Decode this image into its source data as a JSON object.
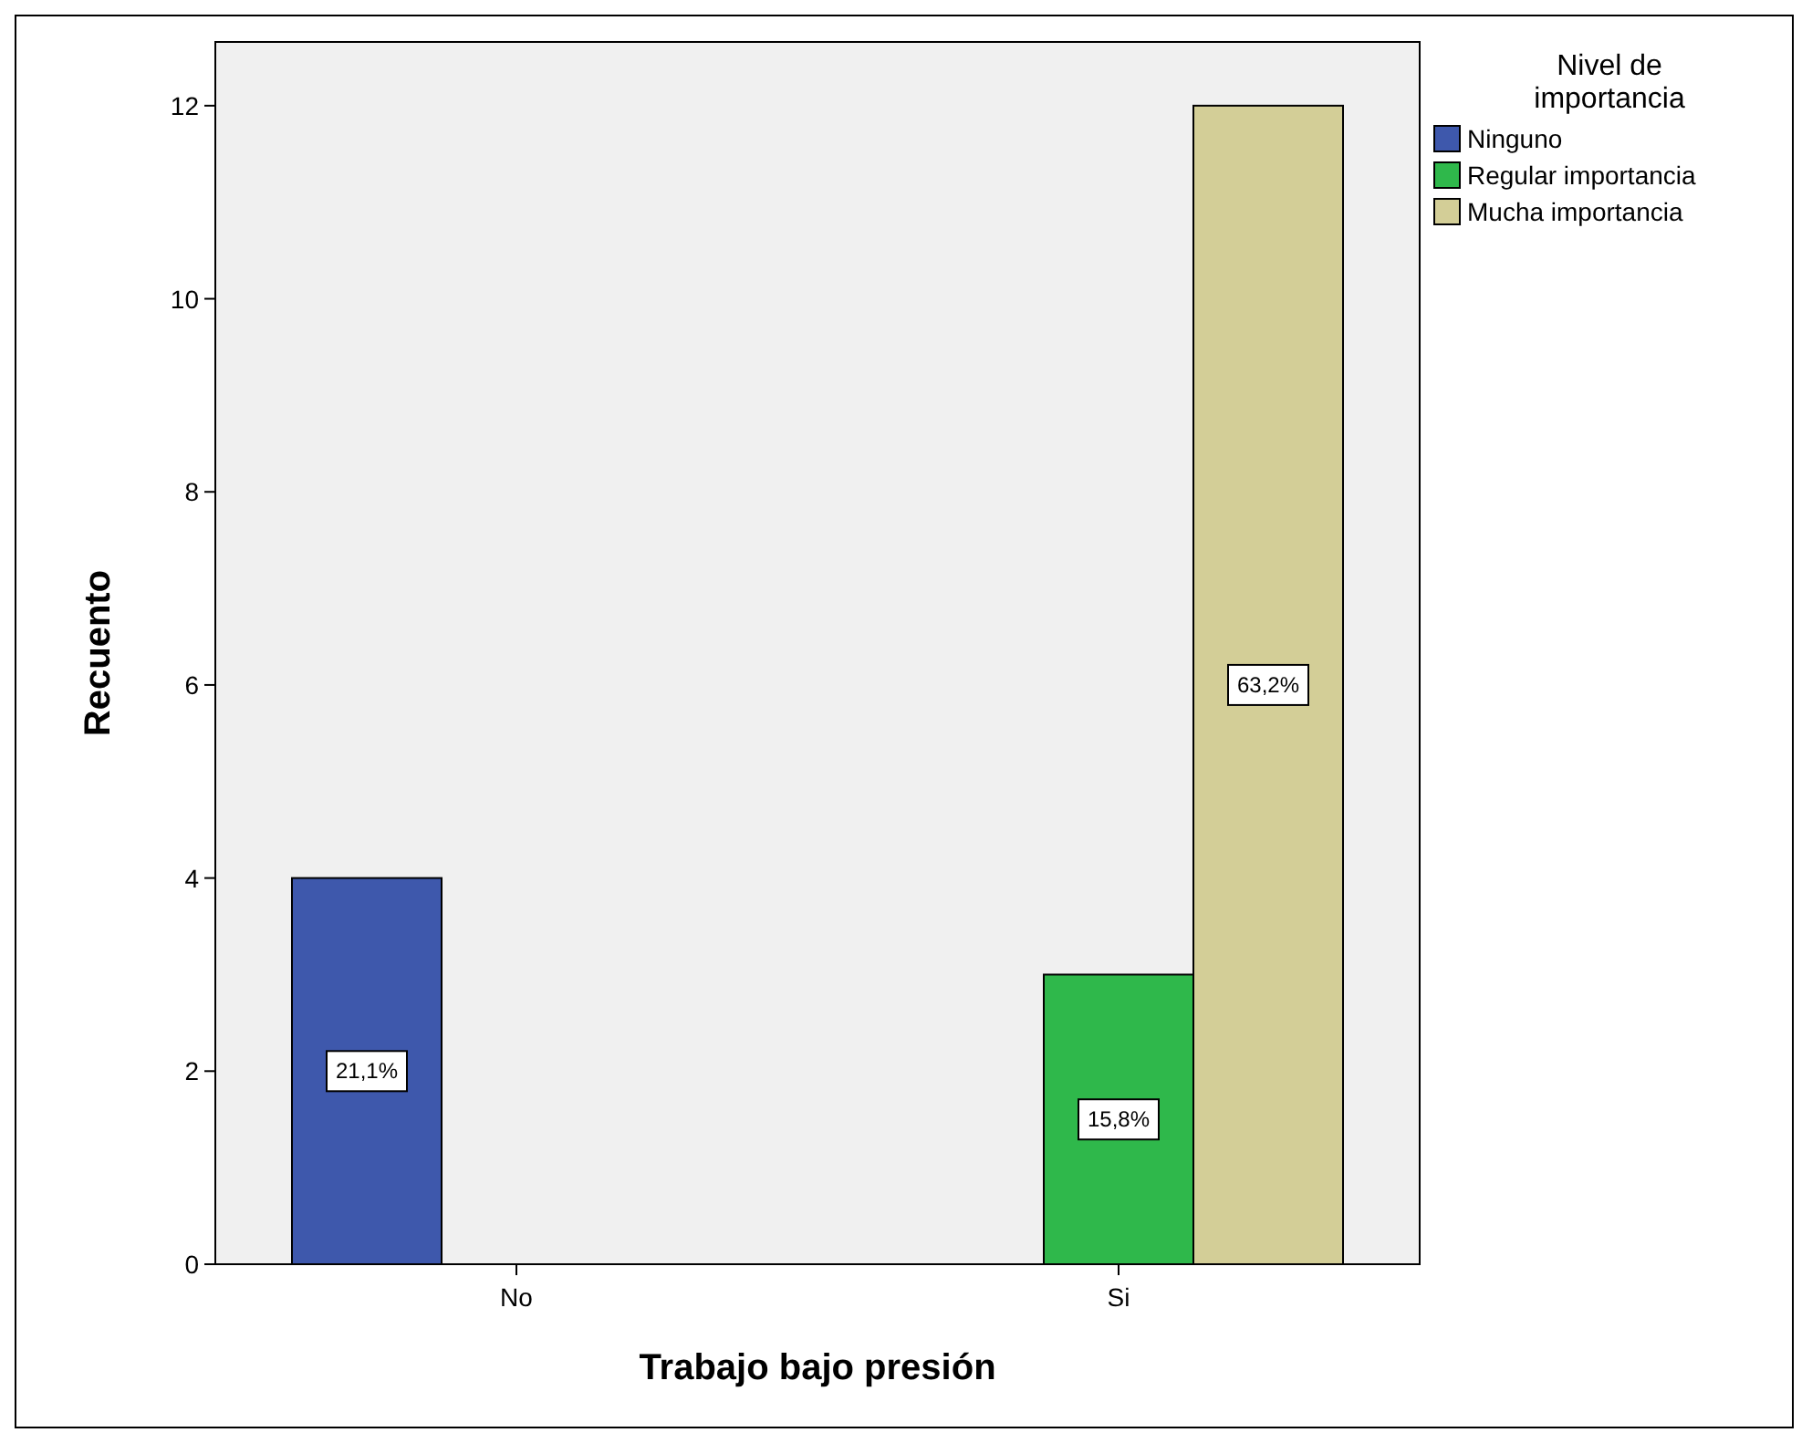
{
  "chart_data": {
    "type": "bar",
    "xlabel": "Trabajo bajo presión",
    "ylabel": "Recuento",
    "legend_title": "Nivel de importancia",
    "categories": [
      "No",
      "Si"
    ],
    "series": [
      {
        "name": "Ninguno",
        "color": "#3e58ac",
        "values": [
          4,
          null
        ]
      },
      {
        "name": "Regular importancia",
        "color": "#2fb84b",
        "values": [
          null,
          3
        ]
      },
      {
        "name": "Mucha importancia",
        "color": "#d3ce97",
        "values": [
          null,
          12
        ]
      }
    ],
    "annotations": [
      "21,1%",
      "15,8%",
      "63,2%"
    ],
    "ylim": [
      0,
      12.66
    ],
    "yticks": [
      0,
      2,
      4,
      6,
      8,
      10,
      12
    ],
    "grid": false,
    "legend": "right"
  }
}
